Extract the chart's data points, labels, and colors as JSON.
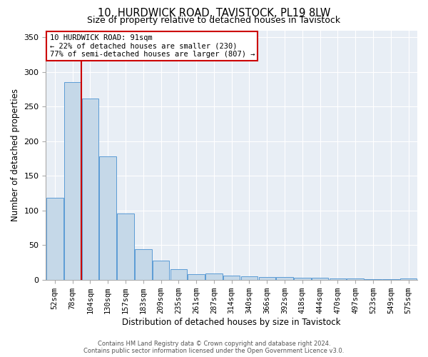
{
  "title1": "10, HURDWICK ROAD, TAVISTOCK, PL19 8LW",
  "title2": "Size of property relative to detached houses in Tavistock",
  "xlabel": "Distribution of detached houses by size in Tavistock",
  "ylabel": "Number of detached properties",
  "bar_labels": [
    "52sqm",
    "78sqm",
    "104sqm",
    "130sqm",
    "157sqm",
    "183sqm",
    "209sqm",
    "235sqm",
    "261sqm",
    "287sqm",
    "314sqm",
    "340sqm",
    "366sqm",
    "392sqm",
    "418sqm",
    "444sqm",
    "470sqm",
    "497sqm",
    "523sqm",
    "549sqm",
    "575sqm"
  ],
  "bar_values": [
    118,
    285,
    262,
    178,
    96,
    44,
    28,
    15,
    8,
    9,
    6,
    5,
    4,
    4,
    3,
    3,
    2,
    2,
    1,
    1,
    2
  ],
  "bar_color": "#c5d8e8",
  "bar_edge_color": "#5b9bd5",
  "property_line_color": "#cc0000",
  "annotation_line1": "10 HURDWICK ROAD: 91sqm",
  "annotation_line2": "← 22% of detached houses are smaller (230)",
  "annotation_line3": "77% of semi-detached houses are larger (807) →",
  "annotation_box_color": "#ffffff",
  "annotation_box_edge": "#cc0000",
  "ylim": [
    0,
    360
  ],
  "yticks": [
    0,
    50,
    100,
    150,
    200,
    250,
    300,
    350
  ],
  "footer_line1": "Contains HM Land Registry data © Crown copyright and database right 2024.",
  "footer_line2": "Contains public sector information licensed under the Open Government Licence v3.0.",
  "bg_color": "#ffffff",
  "plot_bg_color": "#e8eef5",
  "title1_fontsize": 10.5,
  "title2_fontsize": 9,
  "ylabel_fontsize": 8.5,
  "xlabel_fontsize": 8.5,
  "tick_fontsize": 7.5,
  "annotation_fontsize": 7.5,
  "footer_fontsize": 6.0
}
